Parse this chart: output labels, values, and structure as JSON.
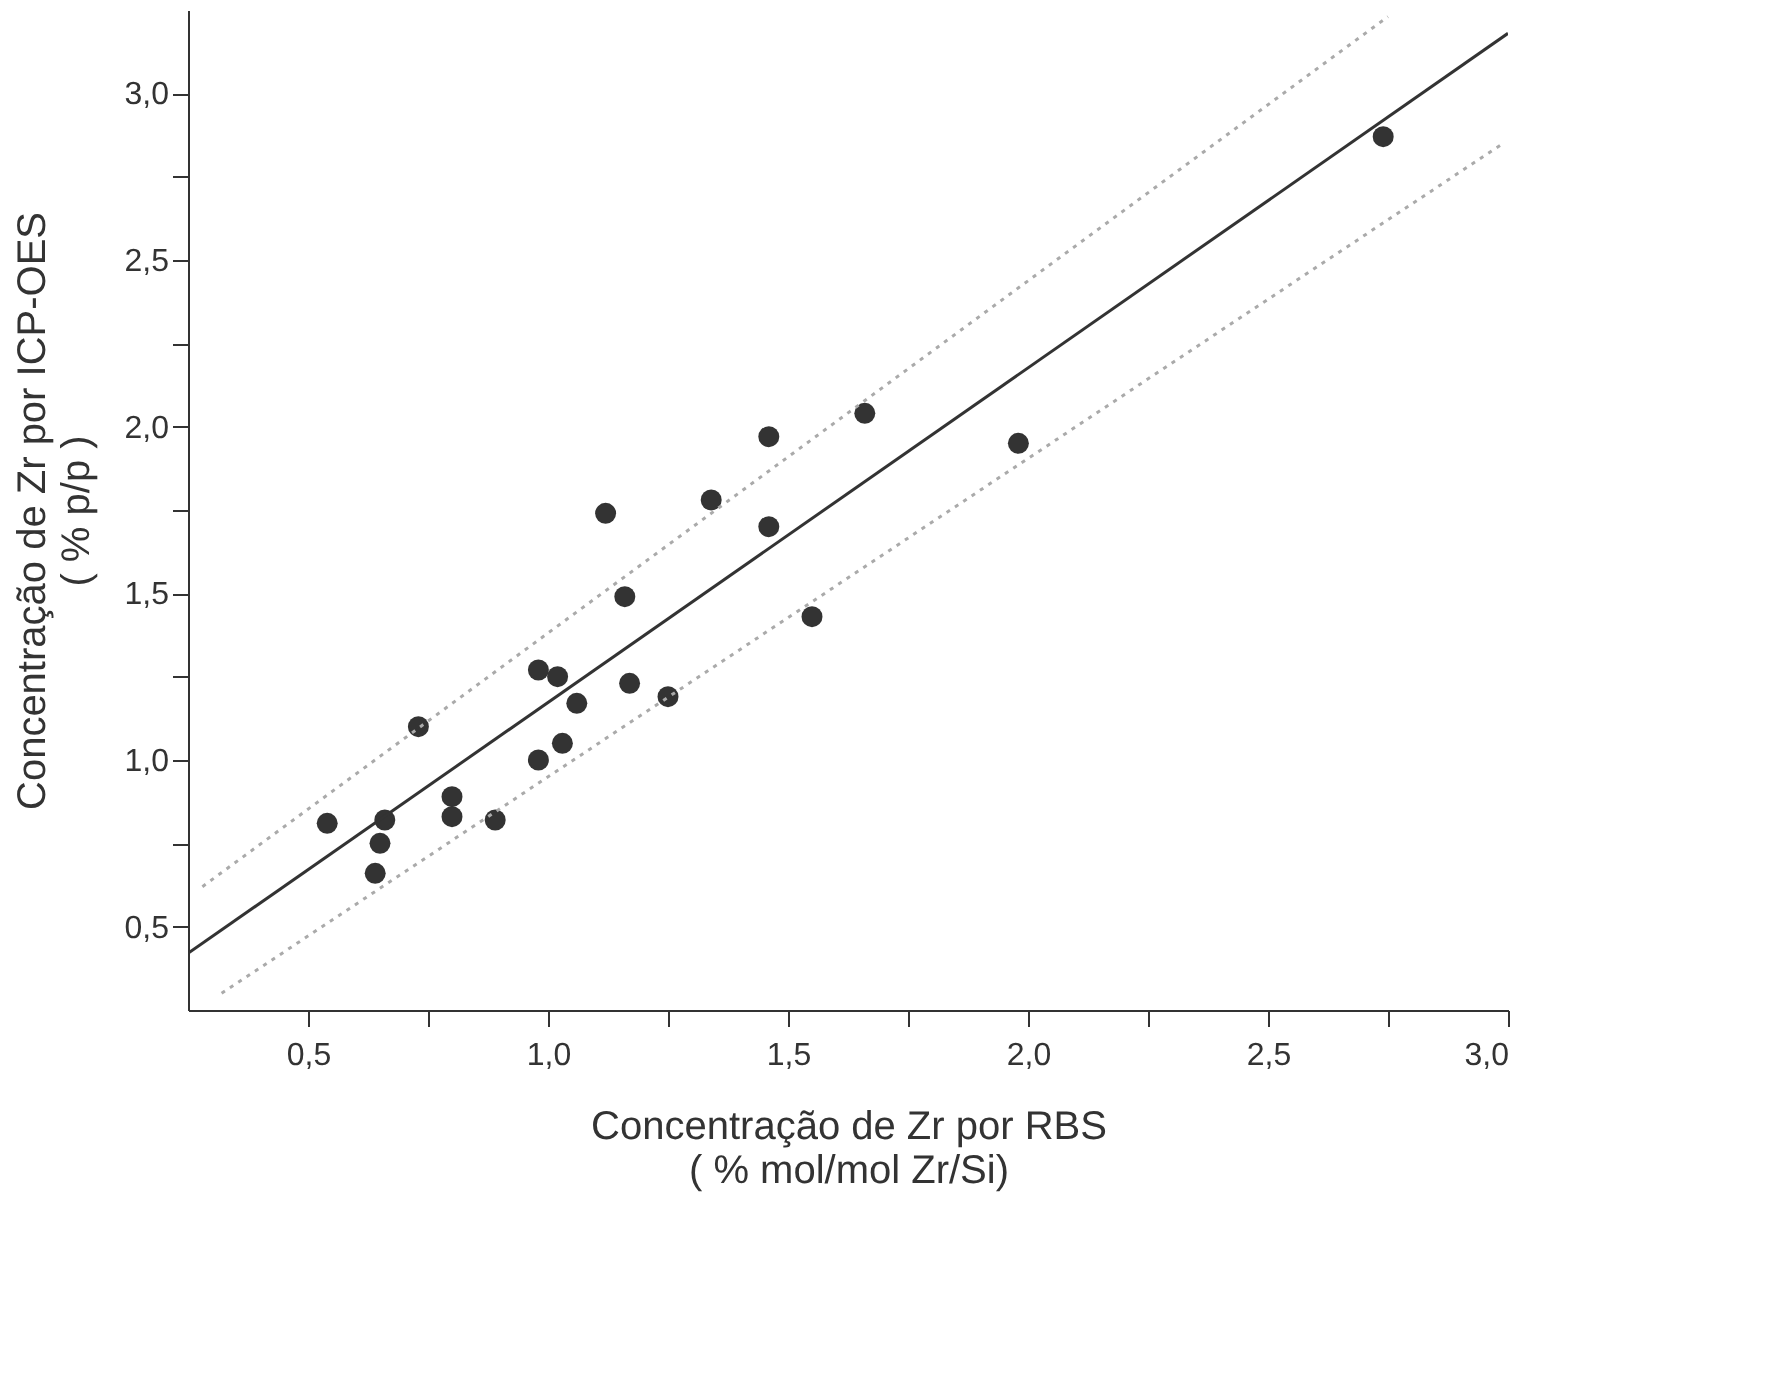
{
  "chart_data": {
    "type": "scatter",
    "xlabel": "Concentração de Zr por RBS\n( % mol/mol Zr/Si)",
    "ylabel": "Concentração de Zr por ICP-OES\n( % p/p )",
    "xlim": [
      0.25,
      3.0
    ],
    "ylim": [
      0.25,
      3.25
    ],
    "xticks": [
      {
        "value": 0.5,
        "label": "0,5"
      },
      {
        "value": 0.75,
        "label": null
      },
      {
        "value": 1.0,
        "label": "1,0"
      },
      {
        "value": 1.25,
        "label": null
      },
      {
        "value": 1.5,
        "label": "1,5"
      },
      {
        "value": 1.75,
        "label": null
      },
      {
        "value": 2.0,
        "label": "2,0"
      },
      {
        "value": 2.25,
        "label": null
      },
      {
        "value": 2.5,
        "label": "2,5"
      },
      {
        "value": 2.75,
        "label": null
      },
      {
        "value": 3.0,
        "label": "3,0"
      }
    ],
    "yticks": [
      {
        "value": 0.5,
        "label": "0,5"
      },
      {
        "value": 0.75,
        "label": null
      },
      {
        "value": 1.0,
        "label": "1,0"
      },
      {
        "value": 1.25,
        "label": null
      },
      {
        "value": 1.5,
        "label": "1,5"
      },
      {
        "value": 1.75,
        "label": null
      },
      {
        "value": 2.0,
        "label": "2,0"
      },
      {
        "value": 2.25,
        "label": null
      },
      {
        "value": 2.5,
        "label": "2,5"
      },
      {
        "value": 2.75,
        "label": null
      },
      {
        "value": 3.0,
        "label": "3,0"
      }
    ],
    "grid": false,
    "series": [
      {
        "marker": "circle",
        "color": "#333333",
        "x": [
          0.54,
          0.64,
          0.65,
          0.66,
          0.73,
          0.8,
          0.8,
          0.89,
          0.98,
          0.98,
          1.02,
          1.03,
          1.06,
          1.12,
          1.16,
          1.17,
          1.25,
          1.34,
          1.46,
          1.46,
          1.55,
          1.66,
          1.98,
          2.74
        ],
        "values": [
          0.81,
          0.66,
          0.75,
          0.82,
          1.1,
          0.89,
          0.83,
          0.82,
          1.0,
          1.27,
          1.25,
          1.05,
          1.17,
          1.74,
          1.49,
          1.23,
          1.19,
          1.78,
          1.97,
          1.7,
          1.43,
          2.04,
          1.95,
          2.87
        ]
      },
      {
        "type": "line",
        "color": "#333333",
        "line_style": "solid",
        "x": [
          0.25,
          3.0
        ],
        "values": [
          0.42,
          3.18
        ]
      },
      {
        "type": "line",
        "color": "#aaaaaa",
        "line_style": "dotted",
        "x": [
          0.28,
          2.75
        ],
        "values": [
          0.62,
          3.23
        ]
      },
      {
        "type": "line",
        "color": "#aaaaaa",
        "line_style": "dotted",
        "x": [
          0.32,
          2.99
        ],
        "values": [
          0.3,
          2.85
        ]
      }
    ]
  }
}
